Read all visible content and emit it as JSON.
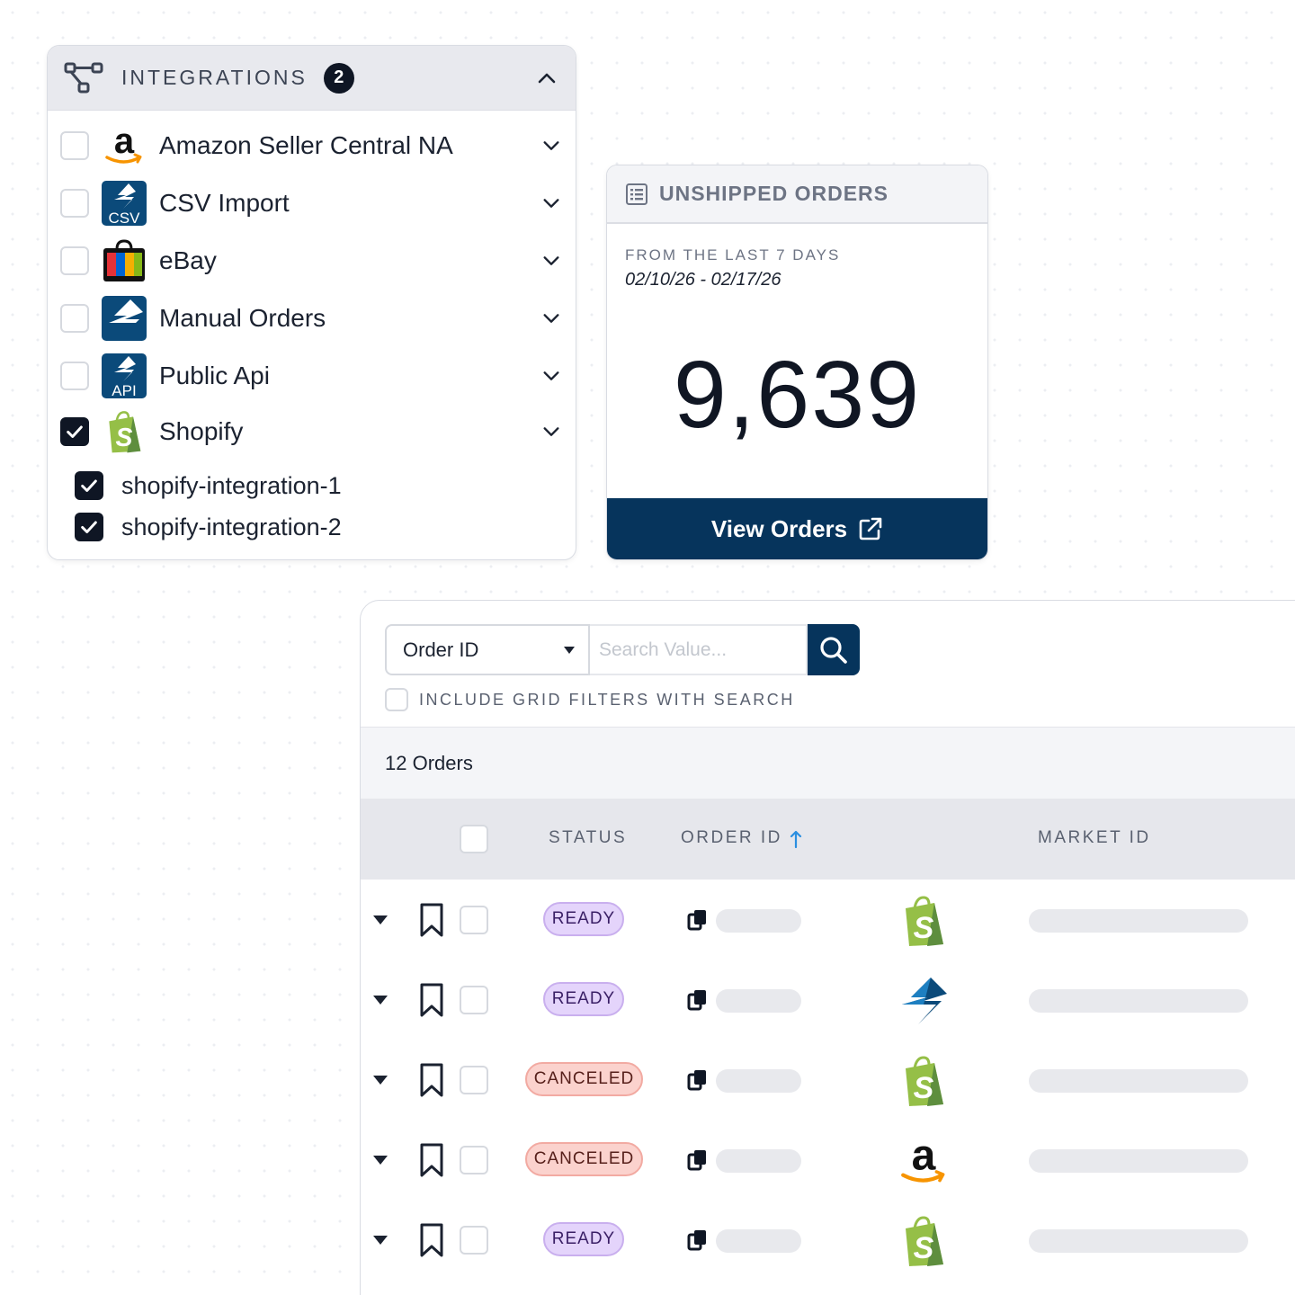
{
  "integrations": {
    "title": "INTEGRATIONS",
    "count": "2",
    "items": [
      {
        "label": "Amazon Seller Central NA",
        "checked": false,
        "icon": "amazon-logo"
      },
      {
        "label": "CSV Import",
        "checked": false,
        "icon": "csv-logo",
        "badge": "CSV"
      },
      {
        "label": "eBay",
        "checked": false,
        "icon": "ebay-logo"
      },
      {
        "label": "Manual Orders",
        "checked": false,
        "icon": "manual-logo"
      },
      {
        "label": "Public Api",
        "checked": false,
        "icon": "api-logo",
        "badge": "API"
      },
      {
        "label": "Shopify",
        "checked": true,
        "icon": "shopify-logo"
      }
    ],
    "sub_items": [
      {
        "label": "shopify-integration-1",
        "checked": true
      },
      {
        "label": "shopify-integration-2",
        "checked": true
      }
    ]
  },
  "unshipped": {
    "title": "UNSHIPPED ORDERS",
    "subtitle": "FROM THE LAST 7 DAYS",
    "date_range": "02/10/26 - 02/17/26",
    "count": "9,639",
    "button_label": "View Orders"
  },
  "grid": {
    "search_field": "Order ID",
    "search_placeholder": "Search Value...",
    "include_filters_label": "INCLUDE GRID FILTERS WITH SEARCH",
    "order_count": "12 Orders",
    "columns": {
      "status": "STATUS",
      "order_id": "ORDER ID",
      "market_id": "MARKET ID"
    },
    "rows": [
      {
        "status": "READY",
        "status_type": "ready",
        "market": "shopify-logo"
      },
      {
        "status": "READY",
        "status_type": "ready",
        "market": "manual-logo"
      },
      {
        "status": "CANCELED",
        "status_type": "canceled",
        "market": "shopify-logo"
      },
      {
        "status": "CANCELED",
        "status_type": "canceled",
        "market": "amazon-logo"
      },
      {
        "status": "READY",
        "status_type": "ready",
        "market": "shopify-logo"
      }
    ]
  },
  "colors": {
    "navy": "#06345c",
    "dark": "#0f1624",
    "ready_bg": "#e4d4fb",
    "canceled_bg": "#fbd2cd",
    "shopify_green": "#95bf47"
  }
}
